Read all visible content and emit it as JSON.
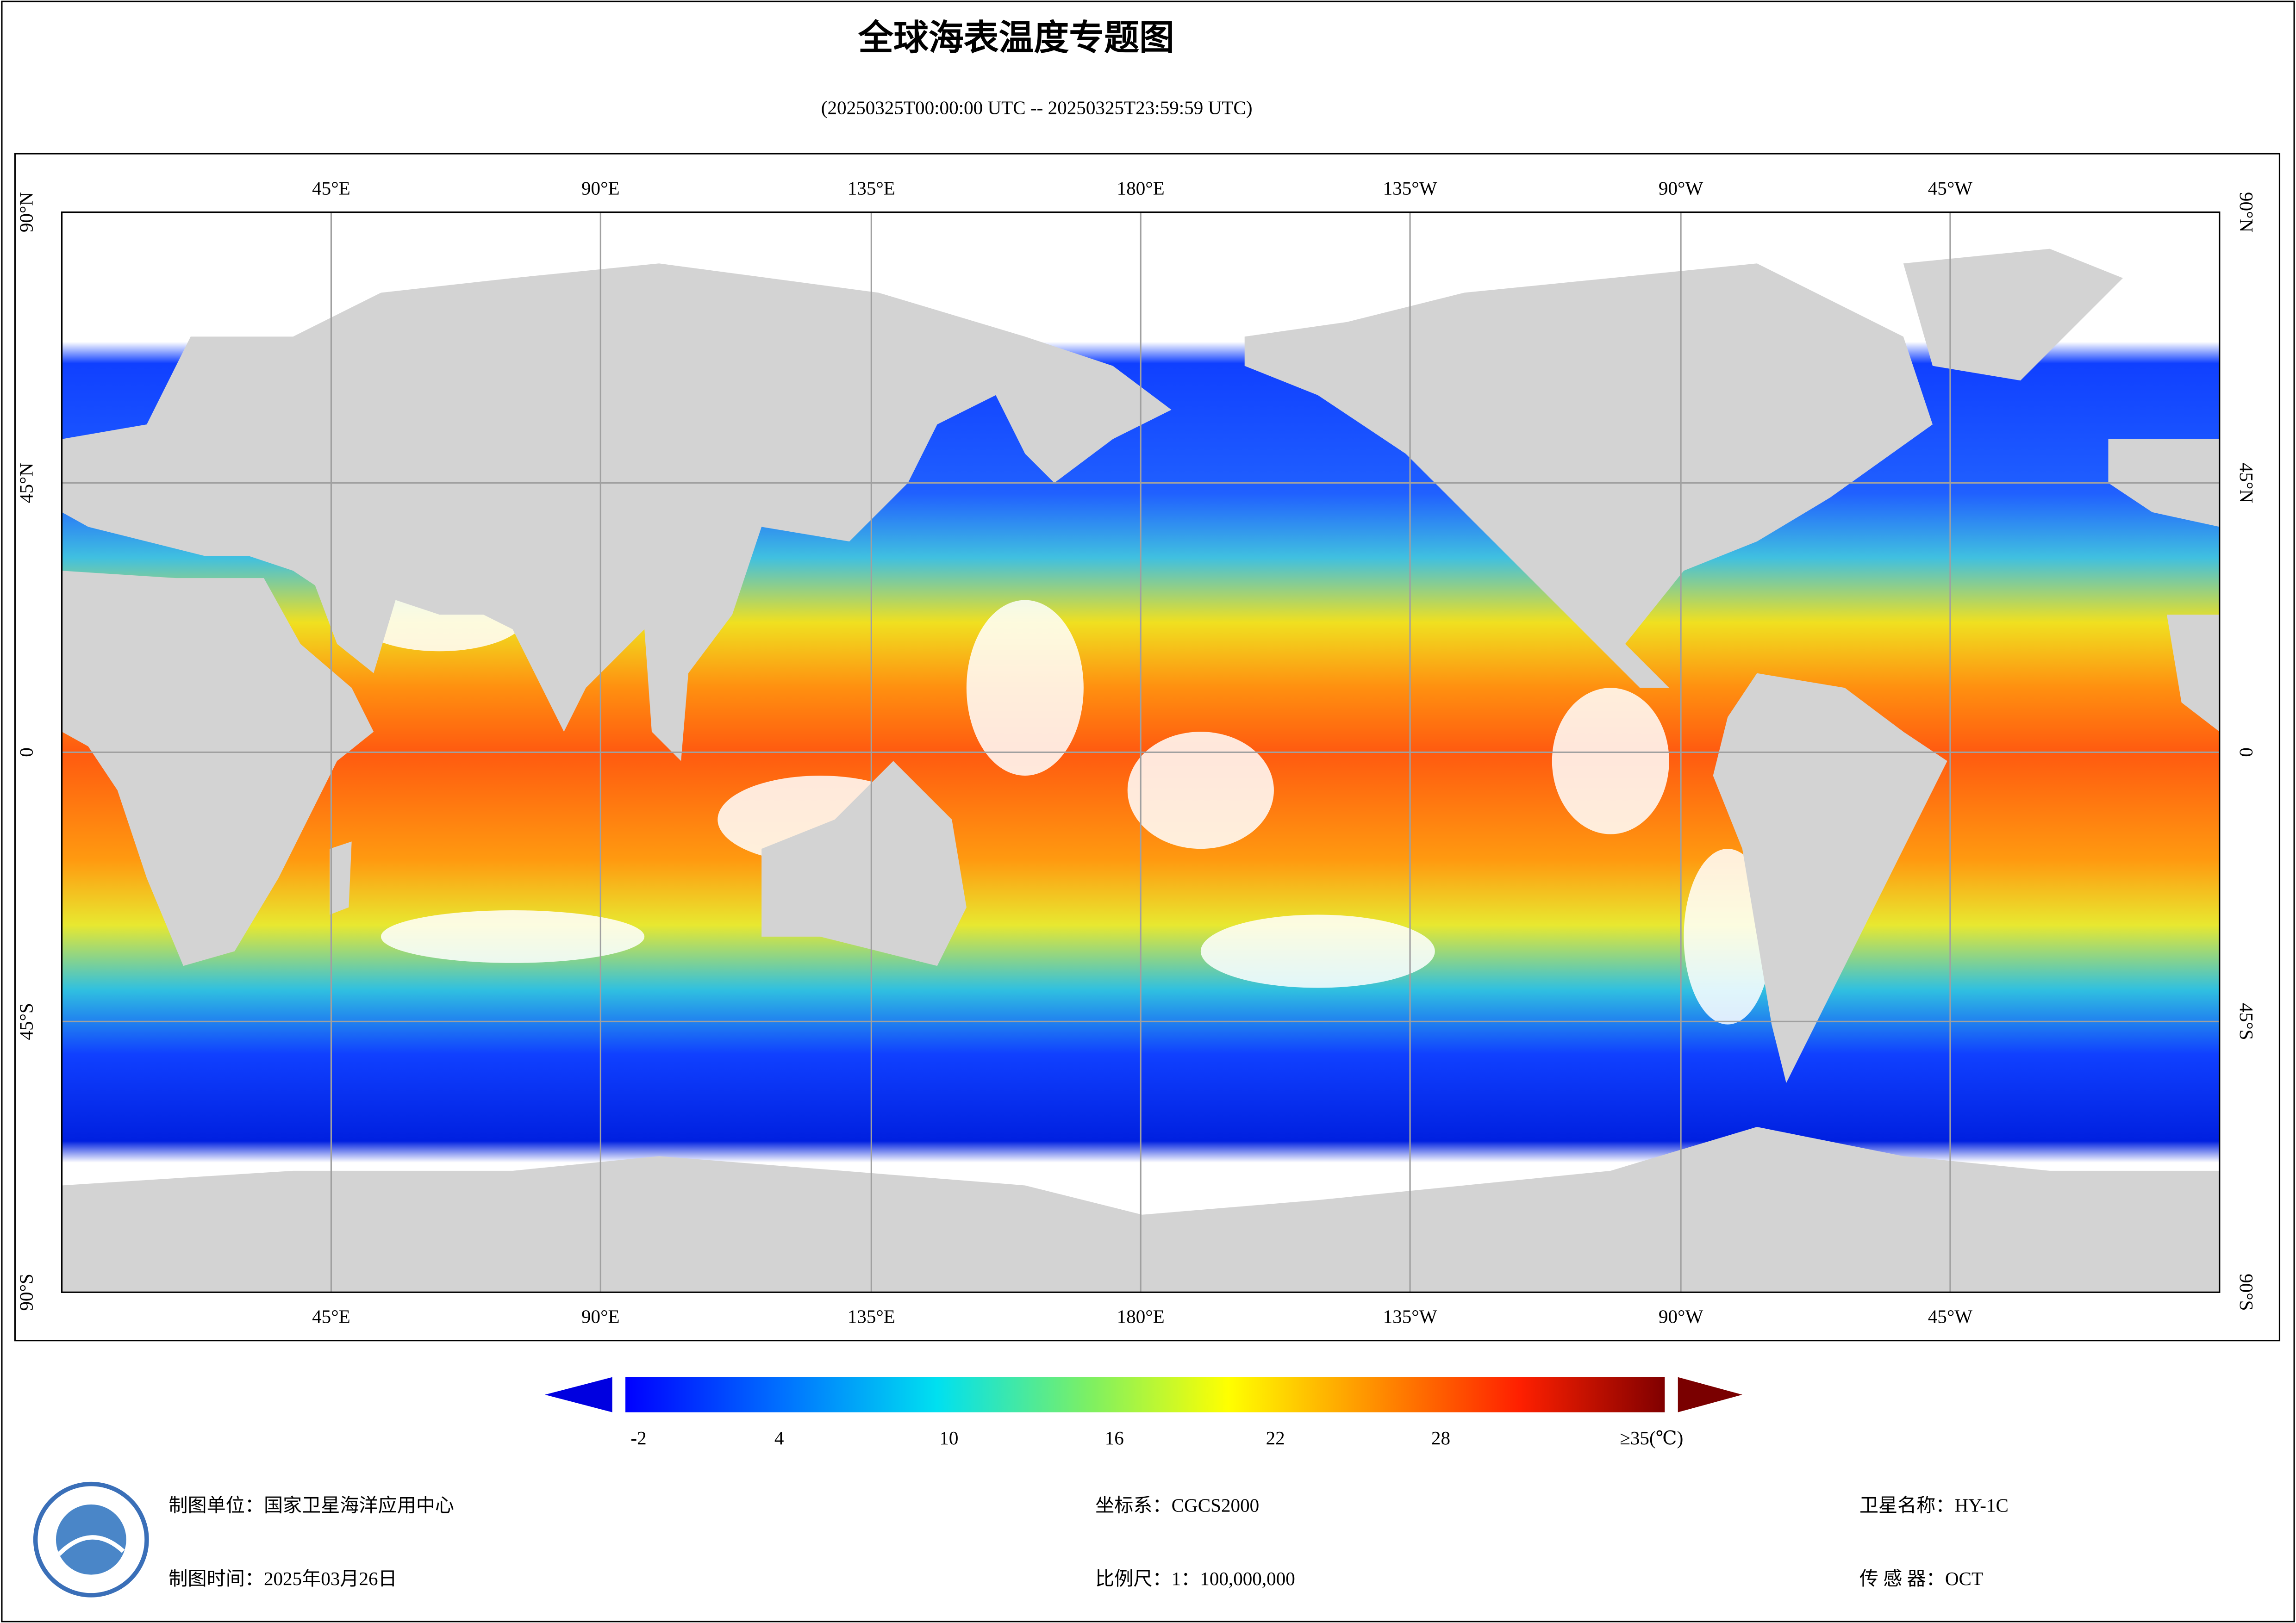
{
  "header": {
    "title": "全球海表温度专题图",
    "subtitle": "(20250325T00:00:00 UTC -- 20250325T23:59:59 UTC)"
  },
  "map": {
    "lon_labels": [
      "45°E",
      "90°E",
      "135°E",
      "180°E",
      "135°W",
      "90°W",
      "45°W"
    ],
    "lat_labels": [
      "90°N",
      "45°N",
      "0",
      "45°S",
      "90°S"
    ]
  },
  "colorbar": {
    "labels": [
      "-2",
      "4",
      "10",
      "16",
      "22",
      "28",
      "≥35(℃)"
    ]
  },
  "footer": {
    "unit": "制图单位：国家卫星海洋应用中心",
    "date": "制图时间：2025年03月26日",
    "crs": "坐标系：CGCS2000",
    "scale": "比例尺：1：100,000,000",
    "satellite": "卫星名称：HY-1C",
    "sensor": "传 感 器：OCT"
  }
}
